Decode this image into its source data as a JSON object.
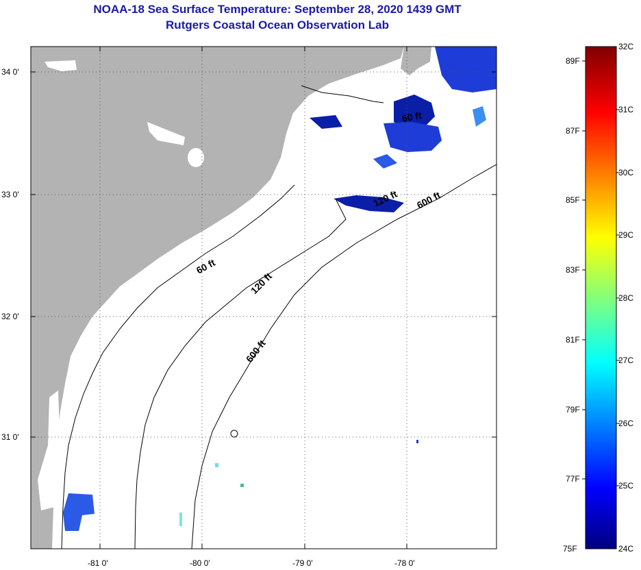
{
  "header": {
    "title": "NOAA-18 Sea Surface Temperature:  September 28, 2020 1439 GMT",
    "subtitle": "Rutgers Coastal Ocean Observation Lab"
  },
  "map": {
    "lat_labels": [
      "34 0'",
      "33 0'",
      "32 0'",
      "31 0'"
    ],
    "lon_labels": [
      "-81 0'",
      "-80 0'",
      "-79 0'",
      "-78 0'"
    ],
    "contours": [
      "60 ft",
      "120 ft",
      "600 ft",
      "600 ft",
      "60 ft",
      "120 ft"
    ],
    "colors": {
      "land": "#b3b3b3",
      "cloud": "#ffffff",
      "water_cold": "#1e3cd8",
      "water_deep": "#0a1ea8",
      "accent_text": "#1a1aa6"
    }
  },
  "colorbar": {
    "f_labels": [
      "89F",
      "87F",
      "85F",
      "83F",
      "81F",
      "79F",
      "77F",
      "75F"
    ],
    "c_labels": [
      "32C",
      "31C",
      "30C",
      "29C",
      "28C",
      "27C",
      "26C",
      "25C",
      "24C"
    ],
    "range_c": [
      24,
      32
    ],
    "range_f": [
      75,
      89
    ]
  }
}
